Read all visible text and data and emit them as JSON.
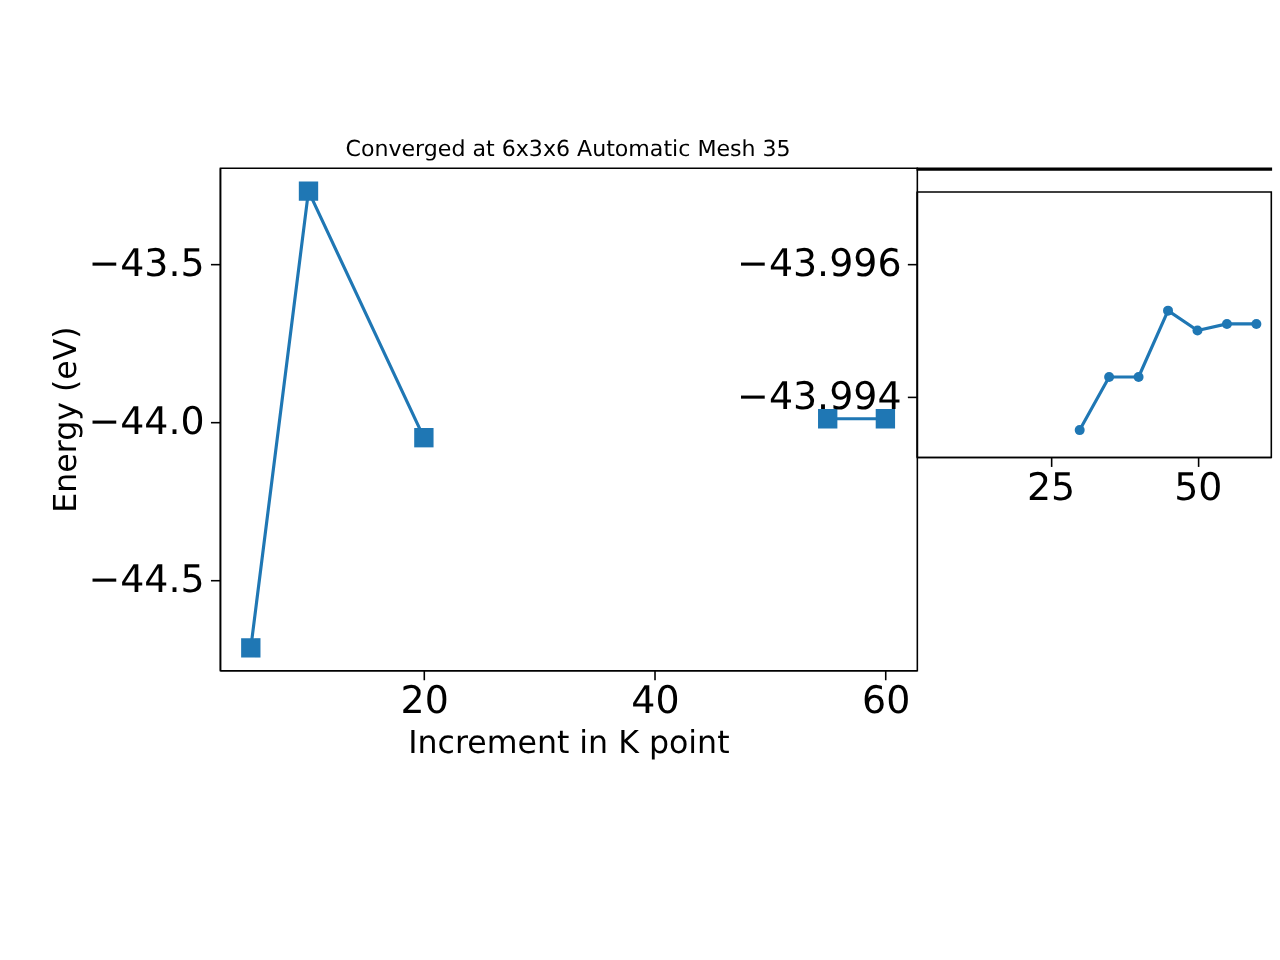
{
  "chart_data": [
    {
      "type": "line",
      "title": "Converged at 6x3x6 Automatic Mesh 35",
      "xlabel": "Increment in K point",
      "ylabel": "Energy (eV)",
      "marker": "square",
      "x": [
        5,
        10,
        20,
        25,
        30,
        35,
        40,
        45,
        50,
        55,
        60
      ],
      "series": [
        {
          "color": "#1f77b4",
          "values": [
            -44.715,
            -43.27,
            -44.05,
            null,
            null,
            null,
            null,
            null,
            null,
            -43.99,
            -43.99
          ]
        }
      ],
      "xlim": [
        2.3,
        62.7
      ],
      "ylim": [
        -44.785,
        -43.195
      ],
      "xticks": [
        20,
        40,
        60
      ],
      "yticks": [
        {
          "value": -43.5,
          "label": "−43.5"
        },
        {
          "value": -44.0,
          "label": "−44.0"
        },
        {
          "value": -44.5,
          "label": "−44.5"
        }
      ],
      "grid": false
    },
    {
      "type": "line",
      "marker": "circle",
      "x": [
        30,
        35,
        40,
        45,
        50,
        55,
        60
      ],
      "series": [
        {
          "color": "#1f77b4",
          "values": [
            -43.9935,
            -43.9943,
            -43.9943,
            -43.9953,
            -43.995,
            -43.9951,
            -43.9951
          ]
        }
      ],
      "xlim": [
        2.3,
        62.4
      ],
      "ylim": [
        -43.9931,
        -43.9971
      ],
      "xticks": [
        25,
        50
      ],
      "yticks": [
        {
          "value": -43.996,
          "label": "−43.996"
        },
        {
          "value": -43.994,
          "label": "−43.994"
        }
      ],
      "grid": false
    }
  ]
}
